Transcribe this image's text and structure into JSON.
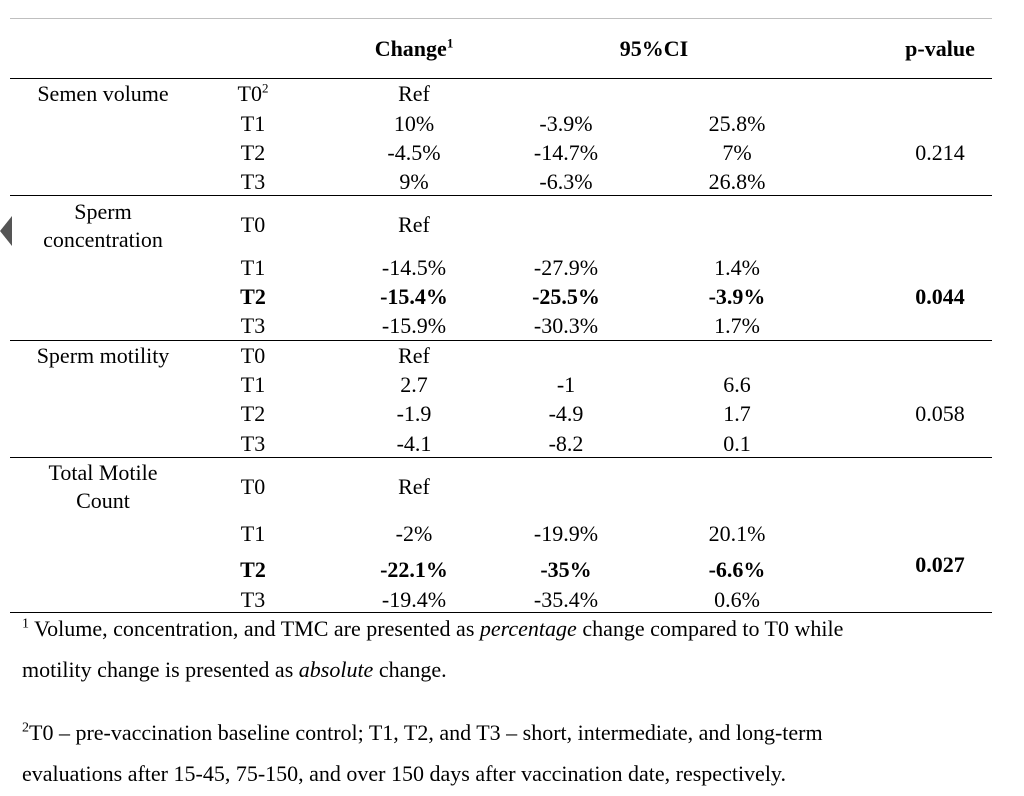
{
  "header": {
    "change": "Change",
    "change_sup": "1",
    "ci": "95%CI",
    "pvalue": "p-value"
  },
  "groups": [
    {
      "label_lines": [
        "Semen volume"
      ],
      "p_value": "0.214",
      "p_bold": false,
      "rows": [
        {
          "time": "T0",
          "time_sup": "2",
          "change": "Ref",
          "ci_low": "",
          "ci_high": "",
          "bold": false
        },
        {
          "time": "T1",
          "change": "10%",
          "ci_low": "-3.9%",
          "ci_high": "25.8%",
          "bold": false
        },
        {
          "time": "T2",
          "change": "-4.5%",
          "ci_low": "-14.7%",
          "ci_high": "7%",
          "bold": false
        },
        {
          "time": "T3",
          "change": "9%",
          "ci_low": "-6.3%",
          "ci_high": "26.8%",
          "bold": false
        }
      ]
    },
    {
      "label_lines": [
        "Sperm",
        "concentration"
      ],
      "p_value": "0.044",
      "p_bold": true,
      "rows": [
        {
          "time": "T0",
          "change": "Ref",
          "ci_low": "",
          "ci_high": "",
          "bold": false
        },
        {
          "time": "T1",
          "change": "-14.5%",
          "ci_low": "-27.9%",
          "ci_high": "1.4%",
          "bold": false
        },
        {
          "time": "T2",
          "change": "-15.4%",
          "ci_low": "-25.5%",
          "ci_high": "-3.9%",
          "bold": true
        },
        {
          "time": "T3",
          "change": "-15.9%",
          "ci_low": "-30.3%",
          "ci_high": "1.7%",
          "bold": false
        }
      ]
    },
    {
      "label_lines": [
        "Sperm motility"
      ],
      "p_value": "0.058",
      "p_bold": false,
      "rows": [
        {
          "time": "T0",
          "change": "Ref",
          "ci_low": "",
          "ci_high": "",
          "bold": false
        },
        {
          "time": "T1",
          "change": "2.7",
          "ci_low": "-1",
          "ci_high": "6.6",
          "bold": false
        },
        {
          "time": "T2",
          "change": "-1.9",
          "ci_low": "-4.9",
          "ci_high": "1.7",
          "bold": false
        },
        {
          "time": "T3",
          "change": "-4.1",
          "ci_low": "-8.2",
          "ci_high": "0.1",
          "bold": false
        }
      ]
    },
    {
      "label_lines": [
        "Total Motile",
        "Count"
      ],
      "p_value": "0.027",
      "p_bold": true,
      "rows": [
        {
          "time": "T0",
          "change": "Ref",
          "ci_low": "",
          "ci_high": "",
          "bold": false
        },
        {
          "time": "T1",
          "change": "-2%",
          "ci_low": "-19.9%",
          "ci_high": "20.1%",
          "bold": false
        },
        {
          "time": "T2",
          "change": "-22.1%",
          "ci_low": "-35%",
          "ci_high": "-6.6%",
          "bold": true
        },
        {
          "time": "T3",
          "change": "-19.4%",
          "ci_low": "-35.4%",
          "ci_high": "0.6%",
          "bold": false
        }
      ]
    }
  ],
  "notes": {
    "note1": {
      "sup": "1",
      "line1_a": " Volume, concentration, and TMC are presented as ",
      "line1_em": "percentage",
      "line1_b": " change compared to T0 while",
      "line2_a": "motility change is presented as ",
      "line2_em": "absolute",
      "line2_b": " change."
    },
    "note2": {
      "sup": "2",
      "line1": "T0 – pre-vaccination baseline control; T1, T2, and T3 – short, intermediate, and long-term",
      "line2": "evaluations after 15-45, 75-150, and over 150 days after vaccination date, respectively."
    }
  }
}
